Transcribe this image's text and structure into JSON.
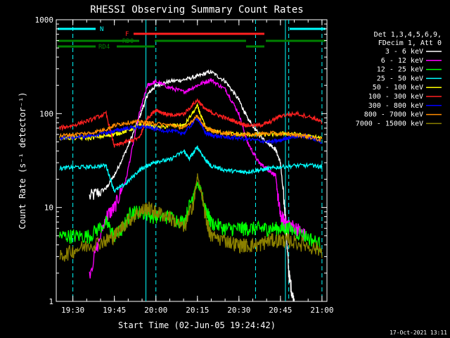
{
  "chart_data": {
    "type": "line",
    "title": "RHESSI Observing Summary Count Rates",
    "xlabel": "Start Time (02-Jun-05 19:24:42)",
    "ylabel": "Count Rate (s⁻¹ detector⁻¹)",
    "yscale": "log",
    "ylim": [
      1,
      1000
    ],
    "xlim_minutes": [
      19.4,
      21.03
    ],
    "x_ticks": [
      "19:30",
      "19:45",
      "20:00",
      "20:15",
      "20:30",
      "20:45",
      "21:00"
    ],
    "y_ticks": [
      "1",
      "10",
      "100",
      "1000"
    ],
    "footer": "17-Oct-2021 13:11",
    "legend_header": [
      "Det 1,3,4,5,6,9,",
      "FDecim 1, Att 0"
    ],
    "flags": [
      {
        "label": "N",
        "color": "#00ffff"
      },
      {
        "label": "F",
        "color": "#ff2020"
      },
      {
        "label": "RD0",
        "color": "#008000"
      },
      {
        "label": "RD4",
        "color": "#008000"
      }
    ],
    "series": [
      {
        "name": "3 - 6 keV",
        "color": "#ffffff",
        "x": [
          19.42,
          19.5,
          19.6,
          19.7,
          19.75,
          19.82,
          19.9,
          19.95,
          20.0,
          20.08,
          20.17,
          20.25,
          20.33,
          20.42,
          20.5,
          20.55,
          20.62,
          20.68,
          20.72,
          20.75,
          20.78,
          20.8,
          20.83
        ],
        "y": [
          null,
          null,
          13,
          16,
          22,
          40,
          90,
          160,
          200,
          220,
          230,
          250,
          280,
          220,
          140,
          90,
          60,
          48,
          42,
          30,
          8,
          2,
          1
        ]
      },
      {
        "name": "6 - 12 keV",
        "color": "#ff00ff",
        "x": [
          19.42,
          19.5,
          19.6,
          19.7,
          19.75,
          19.82,
          19.9,
          19.95,
          20.0,
          20.08,
          20.17,
          20.25,
          20.33,
          20.42,
          20.5,
          20.55,
          20.62,
          20.68,
          20.72,
          20.75,
          20.78,
          20.85,
          20.9
        ],
        "y": [
          null,
          null,
          2,
          8,
          10,
          20,
          100,
          200,
          220,
          190,
          170,
          200,
          230,
          180,
          100,
          50,
          30,
          25,
          22,
          8,
          7,
          6,
          5
        ]
      },
      {
        "name": "12 - 25 keV",
        "color": "#00ff00",
        "x": [
          19.42,
          19.5,
          19.6,
          19.7,
          19.75,
          19.8,
          19.85,
          19.9,
          20.0,
          20.08,
          20.17,
          20.23,
          20.25,
          20.3,
          20.33,
          20.42,
          20.5,
          20.55,
          20.62,
          20.68,
          20.75,
          20.8,
          20.9,
          21.0
        ],
        "y": [
          5,
          5,
          5,
          7,
          5,
          6,
          9,
          9,
          8,
          8,
          7,
          15,
          18,
          10,
          7,
          6,
          6,
          6,
          6,
          6,
          6,
          6,
          5,
          4
        ]
      },
      {
        "name": "25 - 50 keV",
        "color": "#00ffff",
        "x": [
          19.42,
          19.5,
          19.6,
          19.7,
          19.75,
          19.82,
          19.9,
          19.95,
          20.0,
          20.08,
          20.17,
          20.2,
          20.25,
          20.3,
          20.33,
          20.42,
          20.5,
          20.55,
          20.62,
          20.68,
          20.75,
          20.85,
          20.95,
          21.0
        ],
        "y": [
          26,
          27,
          27,
          28,
          15,
          18,
          25,
          28,
          31,
          32,
          40,
          33,
          44,
          32,
          28,
          25,
          24,
          24,
          25,
          26,
          27,
          28,
          28,
          27
        ]
      },
      {
        "name": "50 - 100 keV",
        "color": "#ffff00",
        "x": [
          19.42,
          19.5,
          19.6,
          19.7,
          19.75,
          19.82,
          19.9,
          19.95,
          20.0,
          20.1,
          20.17,
          20.25,
          20.3,
          20.35,
          20.42,
          20.5,
          20.6,
          20.7,
          20.8,
          20.9,
          21.0
        ],
        "y": [
          55,
          55,
          55,
          58,
          60,
          65,
          75,
          75,
          70,
          75,
          75,
          120,
          70,
          65,
          62,
          60,
          60,
          60,
          62,
          58,
          55
        ]
      },
      {
        "name": "100 - 300 keV",
        "color": "#ff2020",
        "x": [
          19.42,
          19.5,
          19.6,
          19.7,
          19.75,
          19.82,
          19.9,
          19.95,
          20.0,
          20.05,
          20.1,
          20.17,
          20.25,
          20.3,
          20.35,
          20.42,
          20.5,
          20.55,
          20.62,
          20.68,
          20.75,
          20.85,
          20.95,
          21.0
        ],
        "y": [
          70,
          75,
          85,
          100,
          45,
          50,
          55,
          90,
          110,
          100,
          95,
          100,
          140,
          110,
          100,
          90,
          80,
          75,
          75,
          80,
          95,
          100,
          90,
          80
        ]
      },
      {
        "name": "300 - 800 keV",
        "color": "#0000ff",
        "x": [
          19.42,
          19.5,
          19.6,
          19.7,
          19.75,
          19.82,
          19.9,
          19.95,
          20.0,
          20.1,
          20.17,
          20.25,
          20.3,
          20.35,
          20.42,
          20.5,
          20.6,
          20.7,
          20.75,
          20.8,
          20.9,
          21.0
        ],
        "y": [
          55,
          56,
          58,
          62,
          65,
          70,
          72,
          72,
          68,
          65,
          62,
          90,
          62,
          58,
          56,
          55,
          52,
          50,
          52,
          56,
          58,
          50
        ]
      },
      {
        "name": "800 - 7000 keV",
        "color": "#ff8c00",
        "x": [
          19.42,
          19.5,
          19.6,
          19.7,
          19.75,
          19.82,
          19.9,
          19.95,
          20.0,
          20.1,
          20.17,
          20.25,
          20.3,
          20.35,
          20.42,
          20.5,
          20.6,
          20.7,
          20.8,
          20.9,
          21.0
        ],
        "y": [
          58,
          60,
          62,
          68,
          75,
          80,
          82,
          80,
          78,
          75,
          70,
          95,
          70,
          65,
          62,
          60,
          60,
          62,
          60,
          58,
          52
        ]
      },
      {
        "name": "7000 - 15000 keV",
        "color": "#8b8000",
        "x": [
          19.42,
          19.5,
          19.6,
          19.7,
          19.75,
          19.82,
          19.9,
          19.95,
          20.0,
          20.08,
          20.17,
          20.23,
          20.25,
          20.3,
          20.33,
          20.42,
          20.5,
          20.55,
          20.62,
          20.68,
          20.75,
          20.8,
          20.9,
          21.0
        ],
        "y": [
          3,
          3.5,
          4,
          4.5,
          5,
          7,
          9,
          10,
          9,
          8,
          6,
          12,
          22,
          8,
          5,
          4.5,
          4,
          4,
          4,
          4.5,
          4.5,
          4.5,
          4,
          3.5
        ]
      }
    ]
  }
}
